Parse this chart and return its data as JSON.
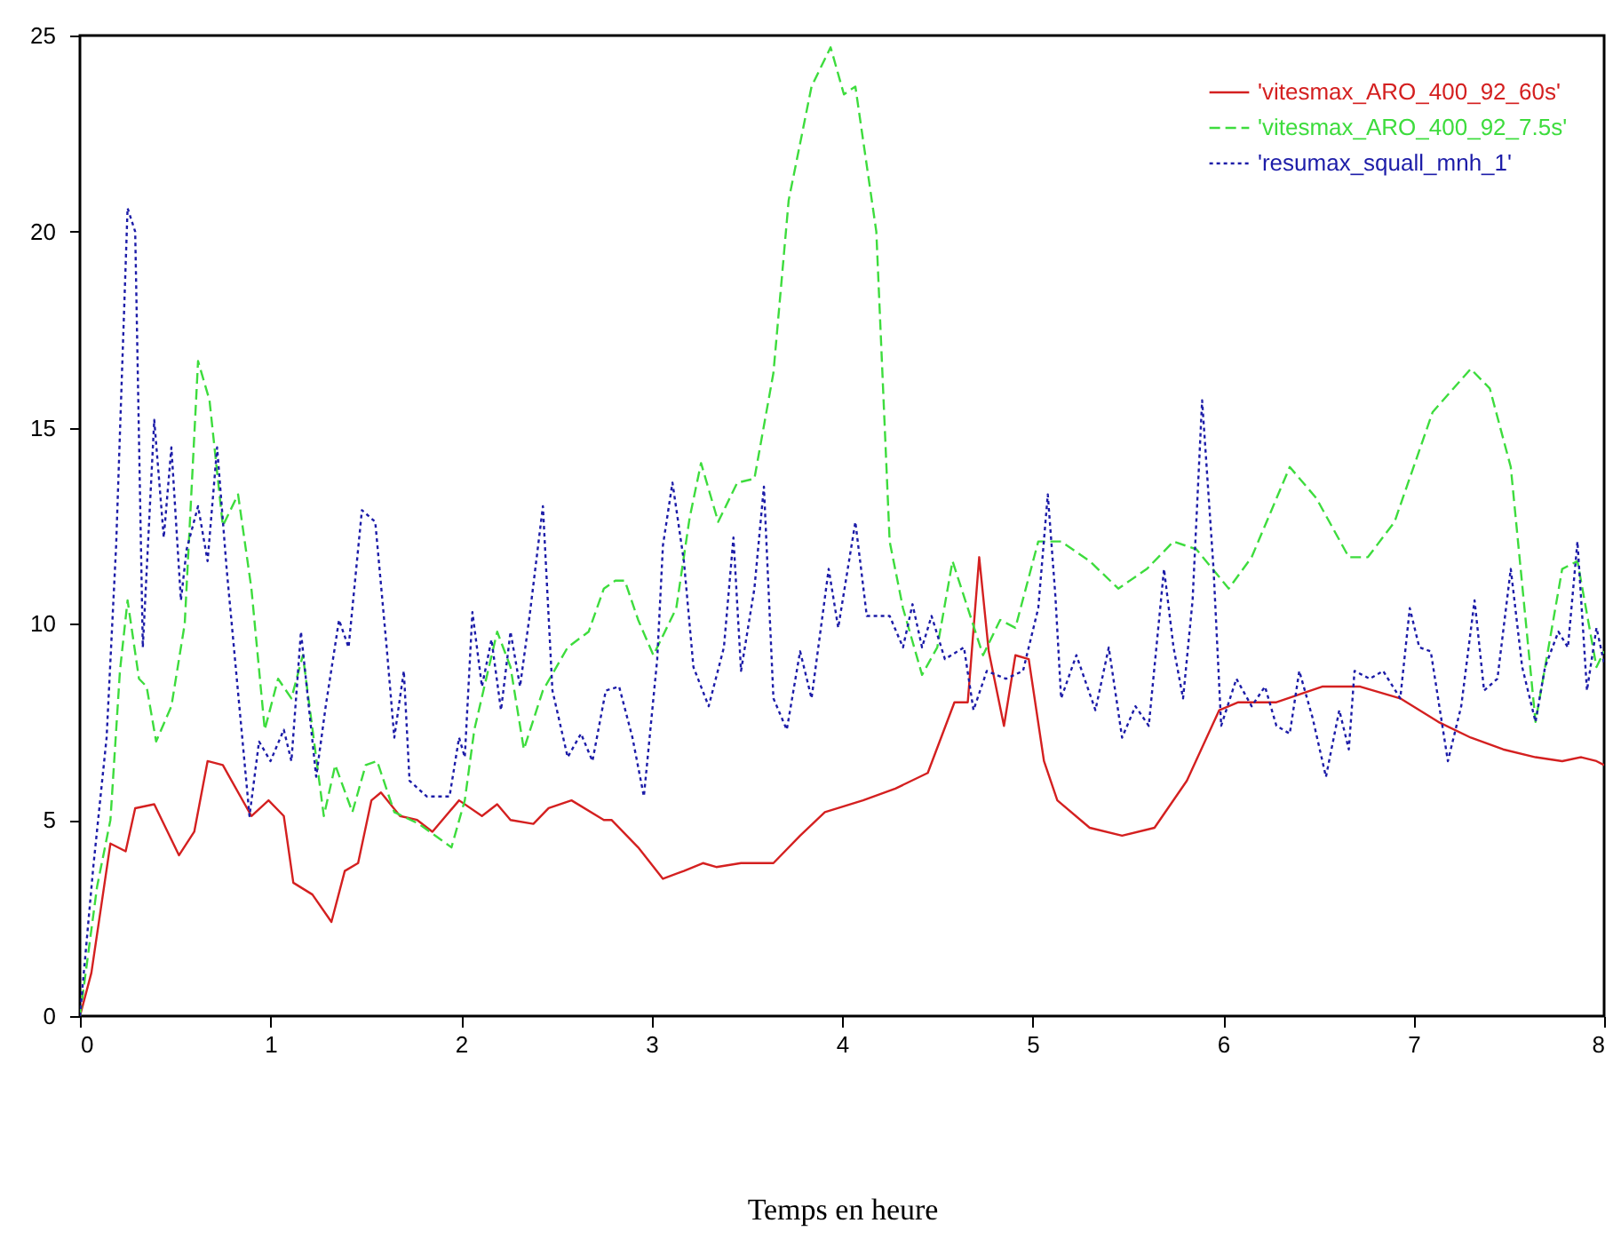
{
  "chart_data": {
    "type": "line",
    "xlabel": "Temps en heure",
    "xlim": [
      0,
      8
    ],
    "xticks": [
      0,
      1,
      2,
      3,
      4,
      5,
      6,
      7,
      8
    ],
    "ylim": [
      0,
      25
    ],
    "yticks": [
      0,
      5,
      10,
      15,
      20,
      25
    ],
    "grid": false,
    "legend": "top right",
    "marker": "none",
    "series": [
      {
        "name": "'vitesmax_ARO_400_92_60s'",
        "color": "#d42020",
        "line_style": "solid",
        "x": [
          0,
          0.06,
          0.16,
          0.24,
          0.29,
          0.39,
          0.52,
          0.6,
          0.67,
          0.75,
          0.9,
          0.99,
          1.07,
          1.12,
          1.22,
          1.32,
          1.39,
          1.46,
          1.53,
          1.58,
          1.68,
          1.77,
          1.85,
          1.99,
          2.11,
          2.19,
          2.26,
          2.38,
          2.46,
          2.58,
          2.75,
          2.79,
          2.93,
          3.06,
          3.17,
          3.27,
          3.34,
          3.47,
          3.64,
          3.78,
          3.91,
          4.11,
          4.28,
          4.45,
          4.59,
          4.66,
          4.72,
          4.77,
          4.85,
          4.91,
          4.98,
          5.06,
          5.13,
          5.3,
          5.47,
          5.64,
          5.81,
          5.98,
          6.08,
          6.28,
          6.52,
          6.72,
          6.93,
          7.13,
          7.3,
          7.47,
          7.64,
          7.78,
          7.88,
          7.96,
          8
        ],
        "values": [
          0,
          1.1,
          4.4,
          4.2,
          5.3,
          5.4,
          4.1,
          4.7,
          6.5,
          6.4,
          5.1,
          5.5,
          5.1,
          3.4,
          3.1,
          2.4,
          3.7,
          3.9,
          5.5,
          5.7,
          5.1,
          5,
          4.7,
          5.5,
          5.1,
          5.4,
          5,
          4.9,
          5.3,
          5.5,
          5,
          5,
          4.3,
          3.5,
          3.7,
          3.9,
          3.8,
          3.9,
          3.9,
          4.6,
          5.2,
          5.5,
          5.8,
          6.2,
          8,
          8,
          11.7,
          9.3,
          7.4,
          9.2,
          9.1,
          6.5,
          5.5,
          4.8,
          4.6,
          4.8,
          6,
          7.8,
          8,
          8,
          8.4,
          8.4,
          8.1,
          7.5,
          7.1,
          6.8,
          6.6,
          6.5,
          6.6,
          6.5,
          6.4
        ]
      },
      {
        "name": "'vitesmax_ARO_400_92_7.5s'",
        "color": "#3ddc3d",
        "line_style": "dashed",
        "x": [
          0,
          0.09,
          0.16,
          0.21,
          0.25,
          0.31,
          0.35,
          0.4,
          0.48,
          0.55,
          0.62,
          0.68,
          0.75,
          0.83,
          0.9,
          0.97,
          1.04,
          1.11,
          1.17,
          1.28,
          1.34,
          1.43,
          1.5,
          1.56,
          1.65,
          1.78,
          1.95,
          2.02,
          2.07,
          2.19,
          2.26,
          2.33,
          2.43,
          2.56,
          2.67,
          2.75,
          2.81,
          2.86,
          2.93,
          3.01,
          3.13,
          3.2,
          3.26,
          3.35,
          3.45,
          3.54,
          3.64,
          3.72,
          3.84,
          3.94,
          4.01,
          4.07,
          4.18,
          4.25,
          4.32,
          4.42,
          4.5,
          4.58,
          4.66,
          4.74,
          4.83,
          4.91,
          5.03,
          5.15,
          5.3,
          5.45,
          5.6,
          5.74,
          5.86,
          6.03,
          6.15,
          6.35,
          6.49,
          6.66,
          6.76,
          6.9,
          7.1,
          7.3,
          7.4,
          7.51,
          7.64,
          7.78,
          7.86,
          7.96,
          8
        ],
        "values": [
          0,
          3.3,
          5,
          8.8,
          10.6,
          8.6,
          8.4,
          7,
          7.9,
          10,
          16.7,
          15.7,
          12.5,
          13.3,
          10.9,
          7.3,
          8.6,
          8.1,
          9.2,
          5.1,
          6.4,
          5.2,
          6.4,
          6.5,
          5.2,
          4.9,
          4.3,
          5.5,
          7.3,
          9.8,
          8.9,
          6.8,
          8.3,
          9.4,
          9.8,
          10.9,
          11.1,
          11.1,
          10.1,
          9.2,
          10.4,
          12.7,
          14.1,
          12.6,
          13.6,
          13.7,
          16.4,
          20.8,
          23.7,
          24.7,
          23.5,
          23.7,
          20,
          12.1,
          10.4,
          8.7,
          9.4,
          11.6,
          10.4,
          9.2,
          10.1,
          9.9,
          12.1,
          12.1,
          11.6,
          10.9,
          11.4,
          12.1,
          11.9,
          10.9,
          11.7,
          14,
          13.2,
          11.7,
          11.7,
          12.6,
          15.4,
          16.5,
          16,
          14,
          7.5,
          11.4,
          11.6,
          8.9,
          9.3
        ]
      },
      {
        "name": "'resumax_squall_mnh_1'",
        "color": "#1c1ca8",
        "line_style": "dotted",
        "x": [
          0,
          0.07,
          0.14,
          0.19,
          0.25,
          0.29,
          0.33,
          0.39,
          0.44,
          0.48,
          0.53,
          0.56,
          0.62,
          0.67,
          0.72,
          0.77,
          0.89,
          0.94,
          1,
          1.07,
          1.11,
          1.16,
          1.24,
          1.29,
          1.36,
          1.41,
          1.48,
          1.55,
          1.61,
          1.65,
          1.7,
          1.73,
          1.82,
          1.94,
          1.99,
          2.02,
          2.06,
          2.11,
          2.16,
          2.21,
          2.26,
          2.31,
          2.36,
          2.43,
          2.48,
          2.56,
          2.63,
          2.69,
          2.76,
          2.83,
          2.9,
          2.96,
          3.03,
          3.06,
          3.11,
          3.17,
          3.22,
          3.3,
          3.38,
          3.43,
          3.47,
          3.54,
          3.59,
          3.64,
          3.71,
          3.78,
          3.84,
          3.93,
          3.98,
          4.07,
          4.13,
          4.25,
          4.32,
          4.37,
          4.42,
          4.47,
          4.54,
          4.64,
          4.69,
          4.76,
          4.86,
          4.95,
          5.03,
          5.08,
          5.12,
          5.15,
          5.23,
          5.33,
          5.4,
          5.47,
          5.54,
          5.61,
          5.69,
          5.74,
          5.79,
          5.84,
          5.89,
          5.95,
          5.99,
          6.07,
          6.15,
          6.22,
          6.28,
          6.35,
          6.4,
          6.47,
          6.54,
          6.61,
          6.66,
          6.69,
          6.77,
          6.84,
          6.93,
          6.98,
          7.03,
          7.09,
          7.18,
          7.25,
          7.32,
          7.37,
          7.44,
          7.51,
          7.57,
          7.64,
          7.69,
          7.76,
          7.81,
          7.86,
          7.91,
          7.96,
          8
        ],
        "values": [
          0,
          3.8,
          7.1,
          12,
          20.6,
          20,
          9.4,
          15.2,
          12.2,
          14.5,
          10.6,
          11.9,
          13,
          11.6,
          14.5,
          11.4,
          5.1,
          7,
          6.5,
          7.3,
          6.5,
          9.8,
          6.1,
          7.9,
          10.1,
          9.4,
          12.9,
          12.6,
          9.4,
          7.1,
          8.8,
          6,
          5.6,
          5.6,
          7.1,
          6.6,
          10.3,
          8.4,
          9.6,
          7.8,
          9.8,
          8.4,
          10.2,
          13,
          8.3,
          6.6,
          7.2,
          6.5,
          8.3,
          8.4,
          7.1,
          5.6,
          9.1,
          12,
          13.6,
          11.6,
          8.9,
          7.9,
          9.4,
          12.2,
          8.8,
          10.9,
          13.5,
          8.1,
          7.3,
          9.3,
          8.1,
          11.4,
          9.9,
          12.6,
          10.2,
          10.2,
          9.4,
          10.5,
          9.4,
          10.2,
          9.1,
          9.4,
          7.8,
          8.8,
          8.6,
          8.8,
          10.4,
          13.3,
          10.7,
          8.1,
          9.2,
          7.8,
          9.4,
          7.1,
          7.9,
          7.4,
          11.4,
          9.4,
          8.1,
          10.6,
          15.7,
          11.4,
          7.4,
          8.6,
          7.9,
          8.4,
          7.4,
          7.2,
          8.8,
          7.6,
          6.1,
          7.8,
          6.8,
          8.8,
          8.6,
          8.8,
          8.1,
          10.4,
          9.4,
          9.3,
          6.5,
          7.9,
          10.6,
          8.3,
          8.6,
          11.4,
          8.9,
          7.5,
          8.9,
          9.8,
          9.4,
          12.1,
          8.3,
          9.9,
          9
        ]
      }
    ]
  }
}
